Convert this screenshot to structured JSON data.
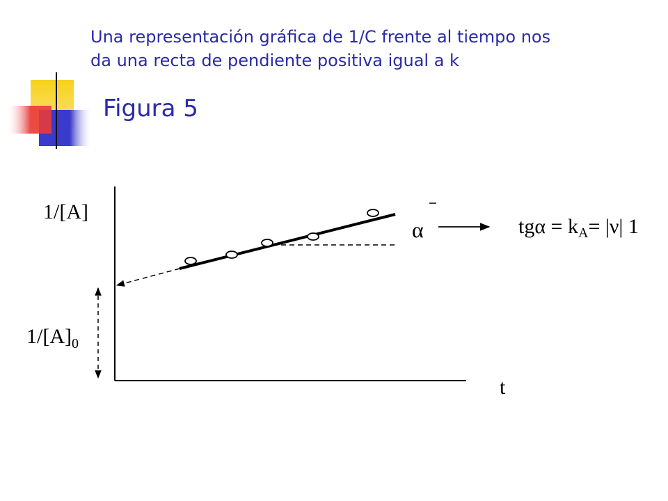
{
  "slide": {
    "intro_line1": "Una representación gráfica de 1/C frente al tiempo nos",
    "intro_line2": "da una recta de pendiente positiva igual a k",
    "title": "Figura 5"
  },
  "colors": {
    "text": "#2a2aa8",
    "deco_yellow": "#f7d21a",
    "deco_blue": "#3a3acc",
    "deco_red": "#e83a3a"
  },
  "figure": {
    "y_axis_label": "1/[A]",
    "intercept_label_main": "1/[A]",
    "intercept_label_sub": "0",
    "x_axis_label": "t",
    "angle_label": "α",
    "slope_eq_prefix": "tgα = k",
    "slope_eq_sub": "A",
    "slope_eq_suffix": "= |ν| 1"
  }
}
